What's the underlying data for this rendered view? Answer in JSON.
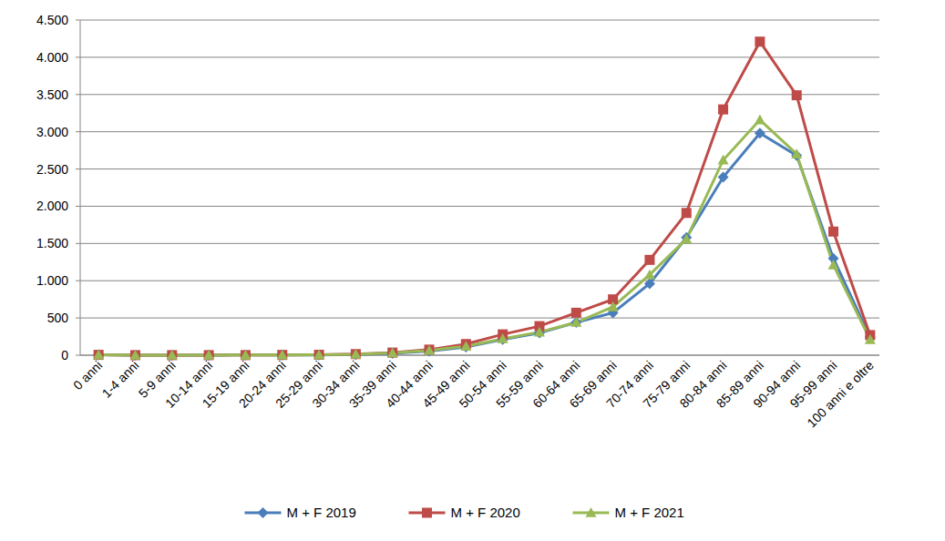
{
  "chart_data": {
    "type": "line",
    "categories": [
      "0 anni",
      "1-4 anni",
      "5-9 anni",
      "10-14 anni",
      "15-19 anni",
      "20-24 anni",
      "25-29 anni",
      "30-34 anni",
      "35-39 anni",
      "40-44 anni",
      "45-49 anni",
      "50-54 anni",
      "55-59 anni",
      "60-64 anni",
      "65-69 anni",
      "70-74 anni",
      "75-79 anni",
      "80-84 anni",
      "85-89 anni",
      "90-94 anni",
      "95-99 anni",
      "100 anni e oltre"
    ],
    "series": [
      {
        "name": "M + F 2019",
        "color": "#4a7ebb",
        "marker": "diamond",
        "values": [
          5,
          1,
          1,
          1,
          2,
          3,
          4,
          10,
          25,
          55,
          110,
          210,
          300,
          440,
          570,
          960,
          1580,
          2390,
          2980,
          2680,
          1300,
          240
        ]
      },
      {
        "name": "M + F 2020",
        "color": "#be4b48",
        "marker": "square",
        "values": [
          5,
          1,
          1,
          1,
          2,
          4,
          6,
          15,
          35,
          75,
          150,
          280,
          390,
          570,
          750,
          1280,
          1910,
          3300,
          4210,
          3490,
          1660,
          270
        ]
      },
      {
        "name": "M + F 2021",
        "color": "#98b954",
        "marker": "triangle",
        "values": [
          5,
          1,
          1,
          1,
          2,
          3,
          5,
          12,
          30,
          65,
          120,
          220,
          310,
          440,
          650,
          1080,
          1560,
          2620,
          3160,
          2700,
          1210,
          210
        ]
      }
    ],
    "ylim": [
      0,
      4500
    ],
    "yticks": [
      0,
      500,
      {
        "value": 1000,
        "label": "1.000"
      },
      {
        "value": 1500,
        "label": "1.500"
      },
      {
        "value": 2000,
        "label": "2.000"
      },
      {
        "value": 2500,
        "label": "2.500"
      },
      {
        "value": 3000,
        "label": "3.000"
      },
      {
        "value": 3500,
        "label": "3.500"
      },
      {
        "value": 4000,
        "label": "4.000"
      },
      {
        "value": 4500,
        "label": "4.500"
      }
    ],
    "grid": true,
    "legend": "bottom"
  }
}
